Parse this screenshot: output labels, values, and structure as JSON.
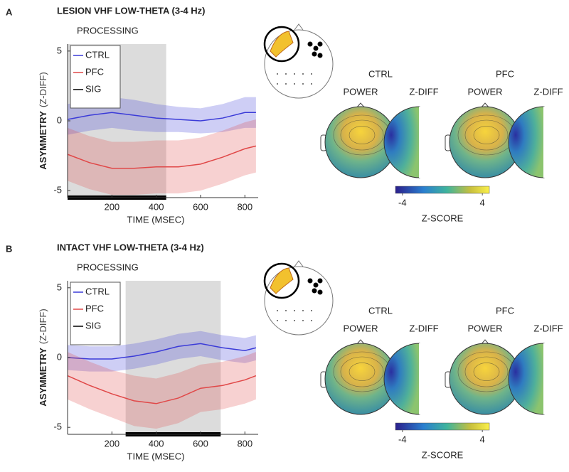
{
  "chart_data": [
    {
      "type": "line",
      "panel": "A",
      "title": "LESION VHF LOW-THETA (3-4 Hz)",
      "annotation": "PROCESSING",
      "shaded_region": [
        0,
        445
      ],
      "xlabel": "TIME (MSEC)",
      "ylabel": "ASYMMETRY",
      "ylabel_unit": "(Z-DIFF)",
      "x": [
        0,
        100,
        200,
        300,
        400,
        500,
        600,
        700,
        800,
        850
      ],
      "series": [
        {
          "name": "CTRL",
          "color": "#3b3bd8",
          "values": [
            0.1,
            0.4,
            0.6,
            0.4,
            0.2,
            0.1,
            0.0,
            0.2,
            0.6,
            0.6
          ],
          "errors": [
            1.1,
            1.1,
            1.1,
            1.1,
            1.0,
            0.9,
            0.9,
            1.0,
            1.1,
            1.1
          ]
        },
        {
          "name": "PFC",
          "color": "#e04848",
          "values": [
            -2.4,
            -3.0,
            -3.4,
            -3.4,
            -3.3,
            -3.3,
            -3.1,
            -2.6,
            -2.0,
            -1.8
          ],
          "errors": [
            1.9,
            1.9,
            1.9,
            1.9,
            1.9,
            1.9,
            1.9,
            1.9,
            1.9,
            1.9
          ]
        },
        {
          "name": "SIG",
          "color": "#000000",
          "intervals": [
            [
              0,
              445
            ]
          ]
        }
      ],
      "xlim": [
        0,
        860
      ],
      "ylim": [
        -5.5,
        5.5
      ],
      "xticks": [
        200,
        400,
        600,
        800
      ],
      "yticks": [
        -5,
        0,
        5
      ],
      "topomaps": {
        "groups": [
          {
            "name": "CTRL",
            "maps": [
              "POWER",
              "Z-DIFF"
            ]
          },
          {
            "name": "PFC",
            "maps": [
              "POWER",
              "Z-DIFF"
            ]
          }
        ],
        "colorbar": {
          "lim": [
            -4.7,
            4.7
          ],
          "ticks": [
            -4,
            4
          ],
          "label": "Z-SCORE"
        }
      }
    },
    {
      "type": "line",
      "panel": "B",
      "title": "INTACT VHF LOW-THETA (3-4 Hz)",
      "annotation": "PROCESSING",
      "shaded_region": [
        262,
        691
      ],
      "xlabel": "TIME (MSEC)",
      "ylabel": "ASYMMETRY",
      "ylabel_unit": "(Z-DIFF)",
      "x": [
        0,
        100,
        200,
        300,
        400,
        500,
        600,
        700,
        800,
        850
      ],
      "series": [
        {
          "name": "CTRL",
          "color": "#3b3bd8",
          "values": [
            0.0,
            -0.1,
            -0.1,
            0.1,
            0.4,
            0.8,
            1.0,
            0.7,
            0.5,
            0.7
          ],
          "errors": [
            0.9,
            0.9,
            0.9,
            0.9,
            0.9,
            0.9,
            0.9,
            0.9,
            0.9,
            0.9
          ]
        },
        {
          "name": "PFC",
          "color": "#e04848",
          "values": [
            -1.3,
            -2.0,
            -2.6,
            -3.1,
            -3.3,
            -2.9,
            -2.2,
            -2.0,
            -1.6,
            -1.3
          ],
          "errors": [
            1.7,
            1.7,
            1.7,
            1.8,
            1.8,
            1.8,
            1.7,
            1.7,
            1.7,
            1.7
          ]
        },
        {
          "name": "SIG",
          "color": "#000000",
          "intervals": [
            [
              262,
              691
            ]
          ]
        }
      ],
      "xlim": [
        0,
        860
      ],
      "ylim": [
        -5.5,
        5.5
      ],
      "xticks": [
        200,
        400,
        600,
        800
      ],
      "yticks": [
        -5,
        0,
        5
      ],
      "topomaps": {
        "groups": [
          {
            "name": "CTRL",
            "maps": [
              "POWER",
              "Z-DIFF"
            ]
          },
          {
            "name": "PFC",
            "maps": [
              "POWER",
              "Z-DIFF"
            ]
          }
        ],
        "colorbar": {
          "lim": [
            -4.7,
            4.7
          ],
          "ticks": [
            -4,
            4
          ],
          "label": "Z-SCORE"
        }
      }
    }
  ]
}
